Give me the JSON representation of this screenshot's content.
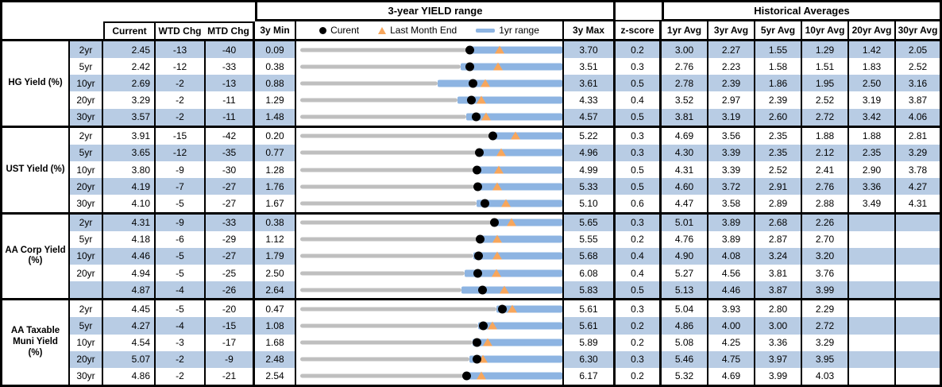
{
  "header": {
    "range_title": "3-year YIELD range",
    "historical_title": "Historical Averages",
    "current": "Current",
    "wtd_chg": "WTD Chg",
    "mtd_chg": "MTD Chg",
    "min_3y": "3y Min",
    "max_3y": "3y Max",
    "z_score": "z-score",
    "avg_headers": [
      "1yr Avg",
      "3yr Avg",
      "5yr Avg",
      "10yr Avg",
      "20yr Avg",
      "30yr Avg"
    ],
    "legend": [
      {
        "icon": "current-dot-icon",
        "label": "Curent"
      },
      {
        "icon": "last-month-triangle-icon",
        "label": "Last Month End"
      },
      {
        "icon": "range-bar-icon",
        "label": "1yr range"
      }
    ]
  },
  "colors": {
    "row_shade_blue": "#B8CCE4",
    "range_bar_blue": "#8DB4E2",
    "track_gray": "#BFBFBF",
    "last_month_orange": "#F7A65C",
    "current_dot_black": "#000000"
  },
  "chart_data": {
    "type": "table",
    "title": "3-year YIELD range",
    "legend": [
      "Curent",
      "Last Month End",
      "1yr range"
    ],
    "legend_position": "top, inside chart column header",
    "embedded_chart": {
      "type": "scatter",
      "description": "Per-row horizontal range strip scaled from 3y Min to 3y Max: gray track below 1yr range, blue bar = 1yr range (high equals 3y Max in every row; low estimated from pixels), black dot = Current, orange triangle = Last Month End (Current minus MTD Chg in bps/100).",
      "grid": false
    },
    "groups": [
      {
        "label": "HG Yield (%)",
        "label_lines": [
          "HG Yield (%)"
        ],
        "rows": [
          {
            "tenor": "2yr",
            "current": "2.45",
            "wtd_chg": "-13",
            "mtd_chg": "-40",
            "min_3y": "0.09",
            "max_3y": "3.70",
            "z_score": "0.2",
            "avgs": [
              "3.00",
              "2.27",
              "1.55",
              "1.29",
              "1.42",
              "2.05"
            ],
            "last_month_end": 2.85,
            "range_1yr_low": 2.41,
            "range_1yr_high": 3.7
          },
          {
            "tenor": "5yr",
            "current": "2.42",
            "wtd_chg": "-12",
            "mtd_chg": "-33",
            "min_3y": "0.38",
            "max_3y": "3.51",
            "z_score": "0.3",
            "avgs": [
              "2.76",
              "2.23",
              "1.58",
              "1.51",
              "1.83",
              "2.52"
            ],
            "last_month_end": 2.75,
            "range_1yr_low": 2.31,
            "range_1yr_high": 3.51
          },
          {
            "tenor": "10yr",
            "current": "2.69",
            "wtd_chg": "-2",
            "mtd_chg": "-13",
            "min_3y": "0.88",
            "max_3y": "3.61",
            "z_score": "0.5",
            "avgs": [
              "2.78",
              "2.39",
              "1.86",
              "1.95",
              "2.50",
              "3.16"
            ],
            "last_month_end": 2.82,
            "range_1yr_low": 2.33,
            "range_1yr_high": 3.61
          },
          {
            "tenor": "20yr",
            "current": "3.29",
            "wtd_chg": "-2",
            "mtd_chg": "-11",
            "min_3y": "1.29",
            "max_3y": "4.33",
            "z_score": "0.4",
            "avgs": [
              "3.52",
              "2.97",
              "2.39",
              "2.52",
              "3.19",
              "3.87"
            ],
            "last_month_end": 3.4,
            "range_1yr_low": 3.13,
            "range_1yr_high": 4.33
          },
          {
            "tenor": "30yr",
            "current": "3.57",
            "wtd_chg": "-2",
            "mtd_chg": "-11",
            "min_3y": "1.48",
            "max_3y": "4.57",
            "z_score": "0.5",
            "avgs": [
              "3.81",
              "3.19",
              "2.60",
              "2.72",
              "3.42",
              "4.06"
            ],
            "last_month_end": 3.68,
            "range_1yr_low": 3.45,
            "range_1yr_high": 4.57
          }
        ]
      },
      {
        "label": "UST Yield (%)",
        "label_lines": [
          "UST Yield (%)"
        ],
        "rows": [
          {
            "tenor": "2yr",
            "current": "3.91",
            "wtd_chg": "-15",
            "mtd_chg": "-42",
            "min_3y": "0.20",
            "max_3y": "5.22",
            "z_score": "0.3",
            "avgs": [
              "4.69",
              "3.56",
              "2.35",
              "1.88",
              "1.88",
              "2.81"
            ],
            "last_month_end": 4.33,
            "range_1yr_low": 3.87,
            "range_1yr_high": 5.22
          },
          {
            "tenor": "5yr",
            "current": "3.65",
            "wtd_chg": "-12",
            "mtd_chg": "-35",
            "min_3y": "0.77",
            "max_3y": "4.96",
            "z_score": "0.3",
            "avgs": [
              "4.30",
              "3.39",
              "2.35",
              "2.12",
              "2.35",
              "3.29"
            ],
            "last_month_end": 4.0,
            "range_1yr_low": 3.62,
            "range_1yr_high": 4.96
          },
          {
            "tenor": "10yr",
            "current": "3.80",
            "wtd_chg": "-9",
            "mtd_chg": "-30",
            "min_3y": "1.28",
            "max_3y": "4.99",
            "z_score": "0.5",
            "avgs": [
              "4.31",
              "3.39",
              "2.52",
              "2.41",
              "2.90",
              "3.78"
            ],
            "last_month_end": 4.1,
            "range_1yr_low": 3.76,
            "range_1yr_high": 4.99
          },
          {
            "tenor": "20yr",
            "current": "4.19",
            "wtd_chg": "-7",
            "mtd_chg": "-27",
            "min_3y": "1.76",
            "max_3y": "5.33",
            "z_score": "0.5",
            "avgs": [
              "4.60",
              "3.72",
              "2.91",
              "2.76",
              "3.36",
              "4.27"
            ],
            "last_month_end": 4.46,
            "range_1yr_low": 4.15,
            "range_1yr_high": 5.33
          },
          {
            "tenor": "30yr",
            "current": "4.10",
            "wtd_chg": "-5",
            "mtd_chg": "-27",
            "min_3y": "1.67",
            "max_3y": "5.10",
            "z_score": "0.6",
            "avgs": [
              "4.47",
              "3.58",
              "2.89",
              "2.88",
              "3.49",
              "4.31"
            ],
            "last_month_end": 4.37,
            "range_1yr_low": 3.99,
            "range_1yr_high": 5.1
          }
        ]
      },
      {
        "label": "AA Corp Yield (%)",
        "label_lines": [
          "AA Corp Yield",
          "(%)"
        ],
        "rows": [
          {
            "tenor": "2yr",
            "current": "4.31",
            "wtd_chg": "-9",
            "mtd_chg": "-33",
            "min_3y": "0.38",
            "max_3y": "5.65",
            "z_score": "0.3",
            "avgs": [
              "5.01",
              "3.89",
              "2.68",
              "2.26",
              "",
              ""
            ],
            "last_month_end": 4.64,
            "range_1yr_low": 4.25,
            "range_1yr_high": 5.65
          },
          {
            "tenor": "5yr",
            "current": "4.18",
            "wtd_chg": "-6",
            "mtd_chg": "-29",
            "min_3y": "1.12",
            "max_3y": "5.55",
            "z_score": "0.2",
            "avgs": [
              "4.76",
              "3.89",
              "2.87",
              "2.70",
              "",
              ""
            ],
            "last_month_end": 4.47,
            "range_1yr_low": 4.15,
            "range_1yr_high": 5.55
          },
          {
            "tenor": "10yr",
            "current": "4.46",
            "wtd_chg": "-5",
            "mtd_chg": "-27",
            "min_3y": "1.79",
            "max_3y": "5.68",
            "z_score": "0.4",
            "avgs": [
              "4.90",
              "4.08",
              "3.24",
              "3.20",
              "",
              ""
            ],
            "last_month_end": 4.73,
            "range_1yr_low": 4.38,
            "range_1yr_high": 5.68
          },
          {
            "tenor": "20yr",
            "current": "4.94",
            "wtd_chg": "-5",
            "mtd_chg": "-25",
            "min_3y": "2.50",
            "max_3y": "6.08",
            "z_score": "0.4",
            "avgs": [
              "5.27",
              "4.56",
              "3.81",
              "3.76",
              "",
              ""
            ],
            "last_month_end": 5.19,
            "range_1yr_low": 4.77,
            "range_1yr_high": 6.08
          },
          {
            "tenor": "",
            "current": "4.87",
            "wtd_chg": "-4",
            "mtd_chg": "-26",
            "min_3y": "2.64",
            "max_3y": "5.83",
            "z_score": "0.5",
            "avgs": [
              "5.13",
              "4.46",
              "3.87",
              "3.99",
              "",
              ""
            ],
            "last_month_end": 5.13,
            "range_1yr_low": 4.62,
            "range_1yr_high": 5.83
          }
        ]
      },
      {
        "label": "AA Taxable Muni Yield (%)",
        "label_lines": [
          "AA Taxable",
          "Muni Yield",
          "(%)"
        ],
        "rows": [
          {
            "tenor": "2yr",
            "current": "4.45",
            "wtd_chg": "-5",
            "mtd_chg": "-20",
            "min_3y": "0.47",
            "max_3y": "5.61",
            "z_score": "0.3",
            "avgs": [
              "5.04",
              "3.93",
              "2.80",
              "2.29",
              "",
              ""
            ],
            "last_month_end": 4.65,
            "range_1yr_low": 4.33,
            "range_1yr_high": 5.61
          },
          {
            "tenor": "5yr",
            "current": "4.27",
            "wtd_chg": "-4",
            "mtd_chg": "-15",
            "min_3y": "1.08",
            "max_3y": "5.61",
            "z_score": "0.2",
            "avgs": [
              "4.86",
              "4.00",
              "3.00",
              "2.72",
              "",
              ""
            ],
            "last_month_end": 4.42,
            "range_1yr_low": 4.18,
            "range_1yr_high": 5.61
          },
          {
            "tenor": "10yr",
            "current": "4.54",
            "wtd_chg": "-3",
            "mtd_chg": "-17",
            "min_3y": "1.68",
            "max_3y": "5.89",
            "z_score": "0.2",
            "avgs": [
              "5.08",
              "4.25",
              "3.36",
              "3.29",
              "",
              ""
            ],
            "last_month_end": 4.71,
            "range_1yr_low": 4.47,
            "range_1yr_high": 5.89
          },
          {
            "tenor": "20yr",
            "current": "5.07",
            "wtd_chg": "-2",
            "mtd_chg": "-9",
            "min_3y": "2.48",
            "max_3y": "6.30",
            "z_score": "0.3",
            "avgs": [
              "5.46",
              "4.75",
              "3.97",
              "3.95",
              "",
              ""
            ],
            "last_month_end": 5.16,
            "range_1yr_low": 4.97,
            "range_1yr_high": 6.3
          },
          {
            "tenor": "30yr",
            "current": "4.86",
            "wtd_chg": "-2",
            "mtd_chg": "-21",
            "min_3y": "2.54",
            "max_3y": "6.17",
            "z_score": "0.2",
            "avgs": [
              "5.32",
              "4.69",
              "3.99",
              "4.03",
              "",
              ""
            ],
            "last_month_end": 5.07,
            "range_1yr_low": 4.84,
            "range_1yr_high": 6.17
          }
        ]
      }
    ]
  }
}
